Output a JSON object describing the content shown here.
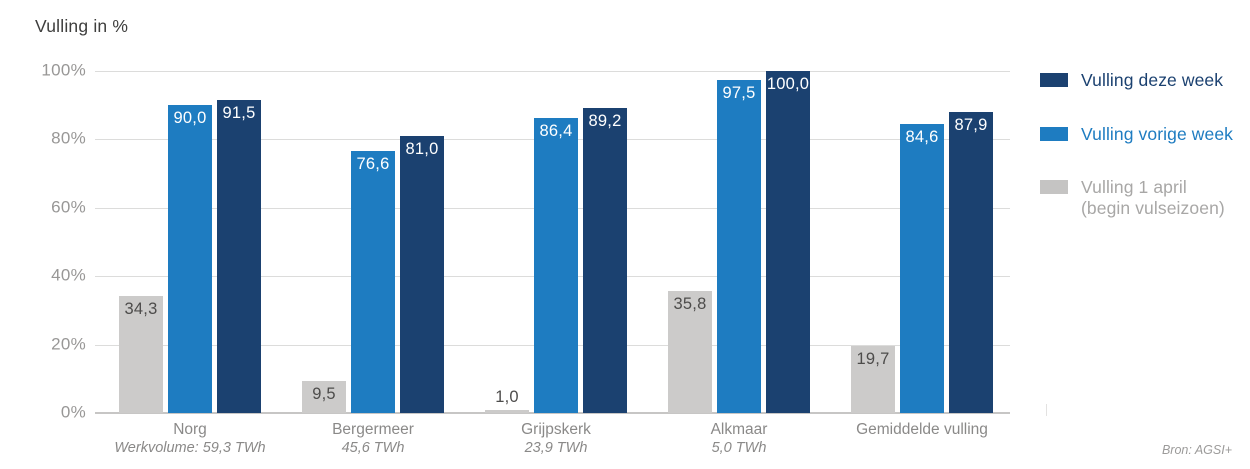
{
  "title": "Vulling in %",
  "source": "Bron: AGSI+",
  "legend": [
    {
      "label": "Vulling deze week",
      "swatch_color": "#1b4170",
      "text_color": "#1b4170"
    },
    {
      "label": "Vulling vorige week",
      "swatch_color": "#1e7cc1",
      "text_color": "#1e7cc1"
    },
    {
      "label": "Vulling 1 april\n(begin vulseizoen)",
      "swatch_color": "#c5c4c3",
      "text_color": "#a8a7a6"
    }
  ],
  "chart_data": {
    "type": "bar",
    "title": "Vulling in %",
    "xlabel": "",
    "ylabel": "Vulling in %",
    "ylim": [
      0,
      100
    ],
    "yticks": [
      "0%",
      "20%",
      "40%",
      "60%",
      "80%",
      "100%"
    ],
    "grid": true,
    "legend_position": "right",
    "source": "Bron: AGSI+",
    "categories": [
      "Norg",
      "Bergermeer",
      "Grijpskerk",
      "Alkmaar",
      "Gemiddelde vulling"
    ],
    "category_sublabels": [
      "Werkvolume: 59,3 TWh",
      "45,6 TWh",
      "23,9 TWh",
      "5,0 TWh",
      ""
    ],
    "series": [
      {
        "name": "Vulling 1 april (begin vulseizoen)",
        "key": "vulling-1-april",
        "color": "#cccbca",
        "label_color": "#4d4c4b",
        "values": [
          34.3,
          9.5,
          1.0,
          35.8,
          19.7
        ],
        "labels": [
          "34,3",
          "9,5",
          "1,0",
          "35,8",
          "19,7"
        ]
      },
      {
        "name": "Vulling vorige week",
        "key": "vulling-vorige-week",
        "color": "#1e7cc1",
        "label_color": "#ffffff",
        "values": [
          90.0,
          76.6,
          86.4,
          97.5,
          84.6
        ],
        "labels": [
          "90,0",
          "76,6",
          "86,4",
          "97,5",
          "84,6"
        ]
      },
      {
        "name": "Vulling deze week",
        "key": "vulling-deze-week",
        "color": "#1b4170",
        "label_color": "#ffffff",
        "values": [
          91.5,
          81.0,
          89.2,
          100.0,
          87.9
        ],
        "labels": [
          "91,5",
          "81,0",
          "89,2",
          "100,0",
          "87,9"
        ]
      }
    ]
  },
  "colors": {
    "grid": "#dcdcdb",
    "axis": "#c7c6c5",
    "ytick_text": "#989796",
    "category_text": "#8a8988",
    "title_text": "#3e3e3d"
  }
}
